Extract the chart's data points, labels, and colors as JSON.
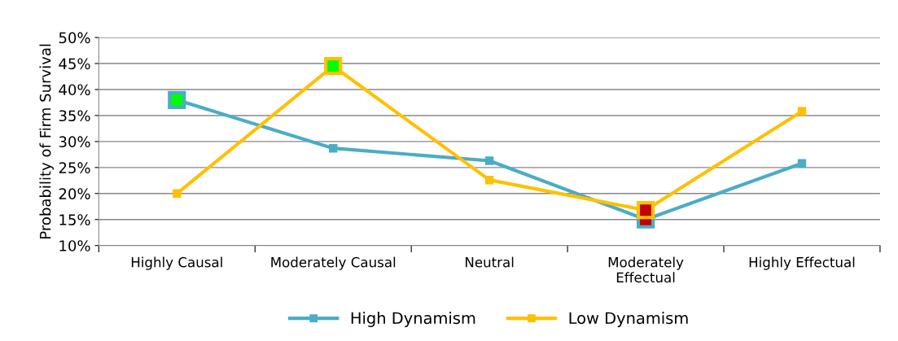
{
  "chart_data": {
    "type": "line",
    "ylabel": "Probability of Firm Survival",
    "categories": [
      "Highly Causal",
      "Moderately Causal",
      "Neutral",
      "Moderately\nEffectual",
      "Highly Effectual"
    ],
    "series": [
      {
        "name": "High Dynamism",
        "color": "#4bacc6",
        "values": [
          38,
          28.7,
          26.3,
          15,
          25.8
        ],
        "colors": [
          "#00ff00",
          "#4bacc6",
          "#4bacc6",
          "#c00000",
          "#4bacc6"
        ]
      },
      {
        "name": "Low Dynamism",
        "color": "#ffc000",
        "values": [
          20,
          44.5,
          22.6,
          16.8,
          35.8
        ],
        "colors": [
          "#ffc000",
          "#00ff00",
          "#ffc000",
          "#c00000",
          "#ffc000"
        ]
      }
    ],
    "ylim": [
      10,
      50
    ],
    "yticks": [
      {
        "value": 10,
        "label": "10%"
      },
      {
        "value": 15,
        "label": "15%"
      },
      {
        "value": 20,
        "label": "20%"
      },
      {
        "value": 25,
        "label": "25%"
      },
      {
        "value": 30,
        "label": "30%"
      },
      {
        "value": 35,
        "label": "35%"
      },
      {
        "value": 40,
        "label": "40%"
      },
      {
        "value": 45,
        "label": "45%"
      },
      {
        "value": 50,
        "label": "50%"
      }
    ],
    "grid": "y",
    "legend": "bottom",
    "marker": "square",
    "line_style": "solid"
  }
}
